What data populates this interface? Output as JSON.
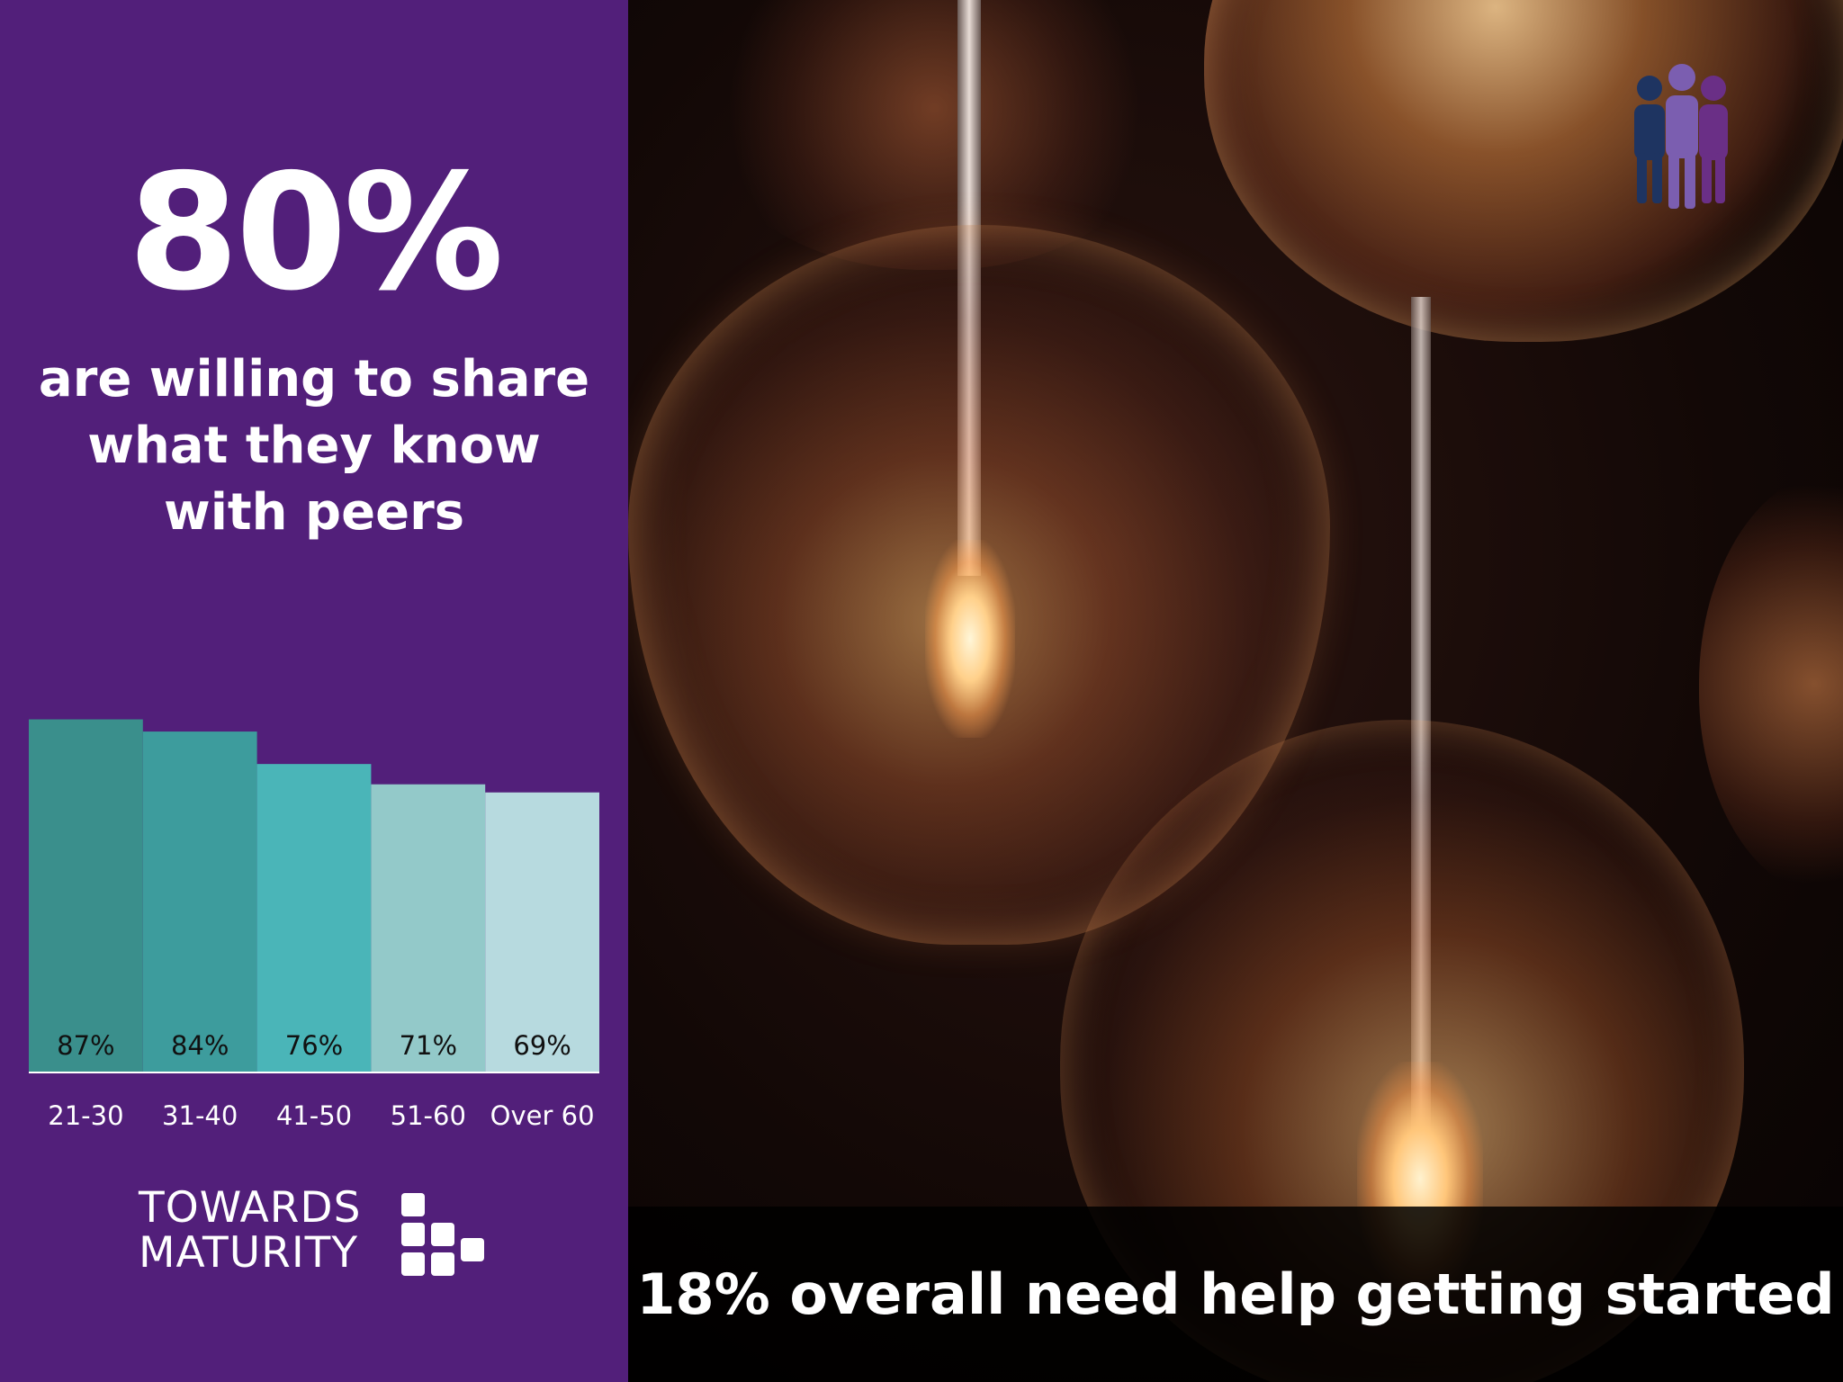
{
  "headline": {
    "stat": "80%",
    "caption": "are willing to share what they know with peers"
  },
  "chart_data": {
    "type": "bar",
    "title": "",
    "xlabel": "",
    "ylabel": "",
    "categories": [
      "21-30",
      "31-40",
      "41-50",
      "51-60",
      "Over 60"
    ],
    "values": [
      87,
      84,
      76,
      71,
      69
    ],
    "value_labels": [
      "87%",
      "84%",
      "76%",
      "71%",
      "69%"
    ],
    "ylim": [
      0,
      90
    ],
    "grid": false,
    "legend": "none",
    "bar_colors": [
      "#3a8f8c",
      "#3d9c9d",
      "#4ab5b8",
      "#93c9c9",
      "#b7dadf"
    ]
  },
  "brand": {
    "line1": "TOWARDS",
    "line2": "MATURITY"
  },
  "footer": {
    "text": "18% overall need help getting started"
  },
  "icons": {
    "people": "people-group-icon",
    "logo_mark": "logo-squares-icon"
  },
  "colors": {
    "panel": "#521f7a",
    "people_dark": "#1e3461",
    "people_mid": "#7b5eb0",
    "people_purple": "#6a2f86"
  }
}
